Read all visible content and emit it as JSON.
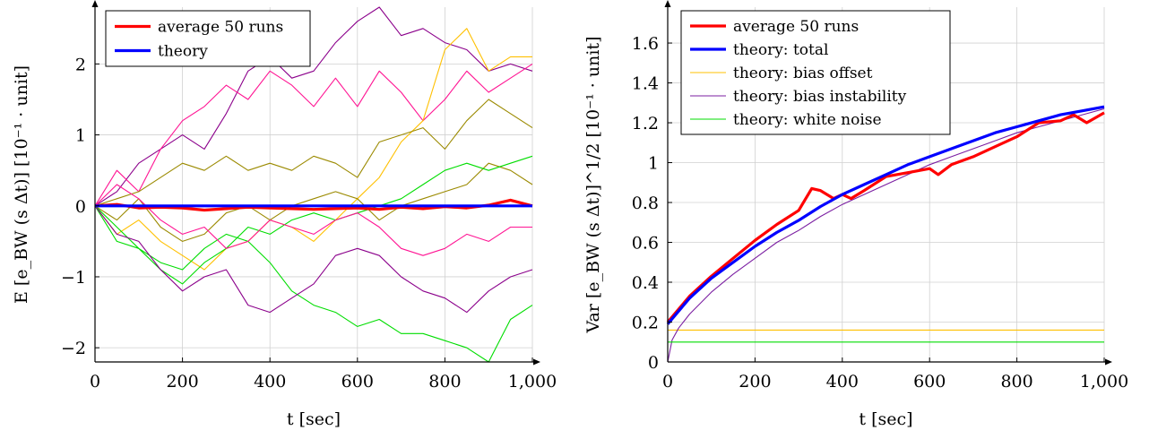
{
  "chart_data": [
    {
      "type": "line",
      "xlabel": "t [sec]",
      "ylabel": "E [e_BW (s Δt)] [10⁻¹ · unit]",
      "xlim": [
        0,
        1000
      ],
      "ylim": [
        -2.2,
        2.8
      ],
      "x_ticks": [
        "0",
        "200",
        "400",
        "600",
        "800",
        "1,000"
      ],
      "y_ticks": [
        "−2",
        "−1",
        "0",
        "1",
        "2"
      ],
      "grid": true,
      "legend": "top-left",
      "legend_entries": [
        "average 50 runs",
        "theory"
      ],
      "series": [
        {
          "name": "average 50 runs",
          "color": "#ff0000",
          "x": [
            0,
            50,
            100,
            150,
            200,
            250,
            300,
            350,
            400,
            450,
            500,
            550,
            600,
            650,
            700,
            750,
            800,
            850,
            900,
            950,
            1000
          ],
          "values": [
            0,
            0.02,
            -0.03,
            -0.02,
            -0.03,
            -0.06,
            -0.04,
            -0.02,
            -0.03,
            -0.04,
            -0.05,
            -0.04,
            -0.03,
            -0.05,
            -0.02,
            -0.04,
            -0.01,
            -0.03,
            0.01,
            0.08,
            0
          ]
        },
        {
          "name": "theory",
          "color": "#0000ff",
          "x": [
            0,
            1000
          ],
          "values": [
            0,
            0
          ]
        },
        {
          "color": "#8b008b",
          "x": [
            0,
            50,
            100,
            150,
            200,
            250,
            300,
            350,
            400,
            450,
            500,
            550,
            600,
            650,
            700,
            750,
            800,
            850,
            900,
            950,
            1000
          ],
          "values": [
            0,
            0.2,
            0.6,
            0.8,
            1.0,
            0.8,
            1.3,
            1.9,
            2.1,
            1.8,
            1.9,
            2.3,
            2.6,
            2.8,
            2.4,
            2.5,
            2.3,
            2.2,
            1.9,
            2.0,
            1.9
          ]
        },
        {
          "color": "#ff1493",
          "x": [
            0,
            50,
            100,
            150,
            200,
            250,
            300,
            350,
            400,
            450,
            500,
            550,
            600,
            650,
            700,
            750,
            800,
            850,
            900,
            950,
            1000
          ],
          "values": [
            0,
            0.5,
            0.2,
            0.8,
            1.2,
            1.4,
            1.7,
            1.5,
            1.9,
            1.7,
            1.4,
            1.8,
            1.4,
            1.9,
            1.6,
            1.2,
            1.5,
            1.9,
            1.6,
            1.8,
            2.0
          ]
        },
        {
          "color": "#ffc000",
          "x": [
            0,
            50,
            100,
            150,
            200,
            250,
            300,
            350,
            400,
            450,
            500,
            550,
            600,
            650,
            700,
            750,
            800,
            850,
            900,
            950,
            1000
          ],
          "values": [
            0,
            -0.4,
            -0.2,
            -0.5,
            -0.7,
            -0.9,
            -0.6,
            -0.5,
            -0.2,
            -0.3,
            -0.5,
            -0.2,
            0.1,
            0.4,
            0.9,
            1.2,
            2.2,
            2.5,
            1.9,
            2.1,
            2.1
          ]
        },
        {
          "color": "#9b8a00",
          "x": [
            0,
            50,
            100,
            150,
            200,
            250,
            300,
            350,
            400,
            450,
            500,
            550,
            600,
            650,
            700,
            750,
            800,
            850,
            900,
            950,
            1000
          ],
          "values": [
            0,
            0.1,
            0.2,
            0.4,
            0.6,
            0.5,
            0.7,
            0.5,
            0.6,
            0.5,
            0.7,
            0.6,
            0.4,
            0.9,
            1.0,
            1.1,
            0.8,
            1.2,
            1.5,
            1.3,
            1.1
          ]
        },
        {
          "color": "#9b8a00",
          "x": [
            0,
            50,
            100,
            150,
            200,
            250,
            300,
            350,
            400,
            450,
            500,
            550,
            600,
            650,
            700,
            750,
            800,
            850,
            900,
            950,
            1000
          ],
          "values": [
            0,
            -0.2,
            0.1,
            -0.3,
            -0.5,
            -0.4,
            -0.1,
            0,
            -0.2,
            0,
            0.1,
            0.2,
            0.1,
            -0.2,
            0,
            0.1,
            0.2,
            0.3,
            0.6,
            0.5,
            0.3
          ]
        },
        {
          "color": "#00dd00",
          "x": [
            0,
            50,
            100,
            150,
            200,
            250,
            300,
            350,
            400,
            450,
            500,
            550,
            600,
            650,
            700,
            750,
            800,
            850,
            900,
            950,
            1000
          ],
          "values": [
            0,
            -0.5,
            -0.6,
            -0.9,
            -1.1,
            -0.8,
            -0.6,
            -0.3,
            -0.4,
            -0.2,
            -0.1,
            -0.2,
            -0.1,
            0,
            0.1,
            0.3,
            0.5,
            0.6,
            0.5,
            0.6,
            0.7
          ]
        },
        {
          "color": "#00dd00",
          "x": [
            0,
            50,
            100,
            150,
            200,
            250,
            300,
            350,
            400,
            450,
            500,
            550,
            600,
            650,
            700,
            750,
            800,
            850,
            900,
            950,
            1000
          ],
          "values": [
            0,
            -0.3,
            -0.6,
            -0.8,
            -0.9,
            -0.6,
            -0.4,
            -0.5,
            -0.8,
            -1.2,
            -1.4,
            -1.5,
            -1.7,
            -1.6,
            -1.8,
            -1.8,
            -1.9,
            -2.0,
            -2.2,
            -1.6,
            -1.4
          ]
        },
        {
          "color": "#8b008b",
          "x": [
            0,
            50,
            100,
            150,
            200,
            250,
            300,
            350,
            400,
            450,
            500,
            550,
            600,
            650,
            700,
            750,
            800,
            850,
            900,
            950,
            1000
          ],
          "values": [
            0,
            -0.4,
            -0.5,
            -0.9,
            -1.2,
            -1.0,
            -0.9,
            -1.4,
            -1.5,
            -1.3,
            -1.1,
            -0.7,
            -0.6,
            -0.7,
            -1.0,
            -1.2,
            -1.3,
            -1.5,
            -1.2,
            -1.0,
            -0.9
          ]
        },
        {
          "color": "#ff1493",
          "x": [
            0,
            50,
            100,
            150,
            200,
            250,
            300,
            350,
            400,
            450,
            500,
            550,
            600,
            650,
            700,
            750,
            800,
            850,
            900,
            950,
            1000
          ],
          "values": [
            0,
            0.3,
            0.1,
            -0.2,
            -0.4,
            -0.3,
            -0.6,
            -0.5,
            -0.2,
            -0.3,
            -0.4,
            -0.2,
            -0.1,
            -0.3,
            -0.6,
            -0.7,
            -0.6,
            -0.4,
            -0.5,
            -0.3,
            -0.3
          ]
        }
      ]
    },
    {
      "type": "line",
      "xlabel": "t [sec]",
      "ylabel": "Var [e_BW (s Δt)]^1/2 [10⁻¹ · unit]",
      "xlim": [
        0,
        1000
      ],
      "ylim": [
        0,
        1.78
      ],
      "x_ticks": [
        "0",
        "200",
        "400",
        "600",
        "800",
        "1,000"
      ],
      "y_ticks": [
        "0",
        "0.2",
        "0.4",
        "0.6",
        "0.8",
        "1",
        "1.2",
        "1.4",
        "1.6"
      ],
      "grid": true,
      "legend": "top-left",
      "legend_entries": [
        "average 50 runs",
        "theory: total",
        "theory: bias offset",
        "theory: bias instability",
        "theory: white noise"
      ],
      "series": [
        {
          "name": "average 50 runs",
          "color": "#ff0000",
          "x": [
            0,
            50,
            100,
            150,
            200,
            250,
            300,
            330,
            350,
            380,
            400,
            420,
            450,
            500,
            550,
            600,
            620,
            650,
            700,
            750,
            800,
            850,
            900,
            930,
            960,
            1000
          ],
          "values": [
            0.2,
            0.33,
            0.43,
            0.52,
            0.61,
            0.69,
            0.76,
            0.87,
            0.86,
            0.82,
            0.84,
            0.82,
            0.86,
            0.93,
            0.95,
            0.97,
            0.94,
            0.99,
            1.03,
            1.08,
            1.13,
            1.2,
            1.21,
            1.24,
            1.2,
            1.25
          ]
        },
        {
          "name": "theory: total",
          "color": "#0000ff",
          "x": [
            0,
            50,
            100,
            150,
            200,
            250,
            300,
            350,
            400,
            450,
            500,
            550,
            600,
            650,
            700,
            750,
            800,
            850,
            900,
            950,
            1000
          ],
          "values": [
            0.19,
            0.32,
            0.42,
            0.5,
            0.58,
            0.65,
            0.71,
            0.78,
            0.84,
            0.89,
            0.94,
            0.99,
            1.03,
            1.07,
            1.11,
            1.15,
            1.18,
            1.21,
            1.24,
            1.26,
            1.28
          ]
        },
        {
          "name": "theory: bias offset",
          "color": "#ffc000",
          "x": [
            0,
            1000
          ],
          "values": [
            0.16,
            0.16
          ]
        },
        {
          "name": "theory: bias instability",
          "color": "#7b1fa2",
          "x": [
            0,
            10,
            25,
            50,
            100,
            150,
            200,
            250,
            300,
            350,
            400,
            450,
            500,
            550,
            600,
            650,
            700,
            750,
            800,
            850,
            900,
            950,
            1000
          ],
          "values": [
            0,
            0.11,
            0.17,
            0.24,
            0.35,
            0.44,
            0.52,
            0.6,
            0.66,
            0.73,
            0.79,
            0.84,
            0.89,
            0.94,
            0.99,
            1.03,
            1.07,
            1.11,
            1.15,
            1.18,
            1.21,
            1.24,
            1.27
          ]
        },
        {
          "name": "theory: white noise",
          "color": "#00dd00",
          "x": [
            0,
            1000
          ],
          "values": [
            0.1,
            0.1
          ]
        }
      ]
    }
  ]
}
